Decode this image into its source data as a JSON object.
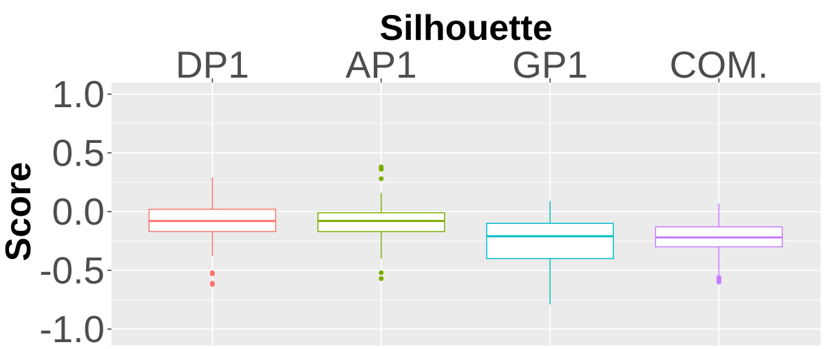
{
  "chart_data": {
    "type": "box",
    "title": "Silhouette",
    "xlabel": "",
    "ylabel": "Score",
    "categories": [
      "DP1",
      "AP1",
      "GP1",
      "COM."
    ],
    "x_axis_position": "top",
    "ylim": [
      -1.05,
      1.05
    ],
    "yticks": [
      1.0,
      0.5,
      0.0,
      -0.5,
      -1.0
    ],
    "ytick_labels": [
      "1.0",
      "0.5",
      "0.0",
      "-0.5",
      "-1.0"
    ],
    "grid": true,
    "legend": "none",
    "colors": [
      "#F8766D",
      "#7CAE00",
      "#00BFC4",
      "#C77CFF"
    ],
    "panel_background": "#EBEBEB",
    "series": [
      {
        "category": "DP1",
        "lower_whisker": -0.38,
        "q1": -0.17,
        "median": -0.08,
        "q3": 0.02,
        "upper_whisker": 0.29,
        "outliers": [
          -0.52,
          -0.53,
          -0.61,
          -0.62
        ]
      },
      {
        "category": "AP1",
        "lower_whisker": -0.4,
        "q1": -0.17,
        "median": -0.08,
        "q3": -0.01,
        "upper_whisker": 0.16,
        "outliers": [
          0.28,
          0.36,
          0.37,
          0.38,
          -0.52,
          -0.57
        ]
      },
      {
        "category": "GP1",
        "lower_whisker": -0.79,
        "q1": -0.4,
        "median": -0.21,
        "q3": -0.1,
        "upper_whisker": 0.09,
        "outliers": []
      },
      {
        "category": "COM.",
        "lower_whisker": -0.55,
        "q1": -0.3,
        "median": -0.22,
        "q3": -0.13,
        "upper_whisker": 0.07,
        "outliers": [
          -0.56,
          -0.57,
          -0.58,
          -0.59,
          -0.6
        ]
      }
    ]
  }
}
